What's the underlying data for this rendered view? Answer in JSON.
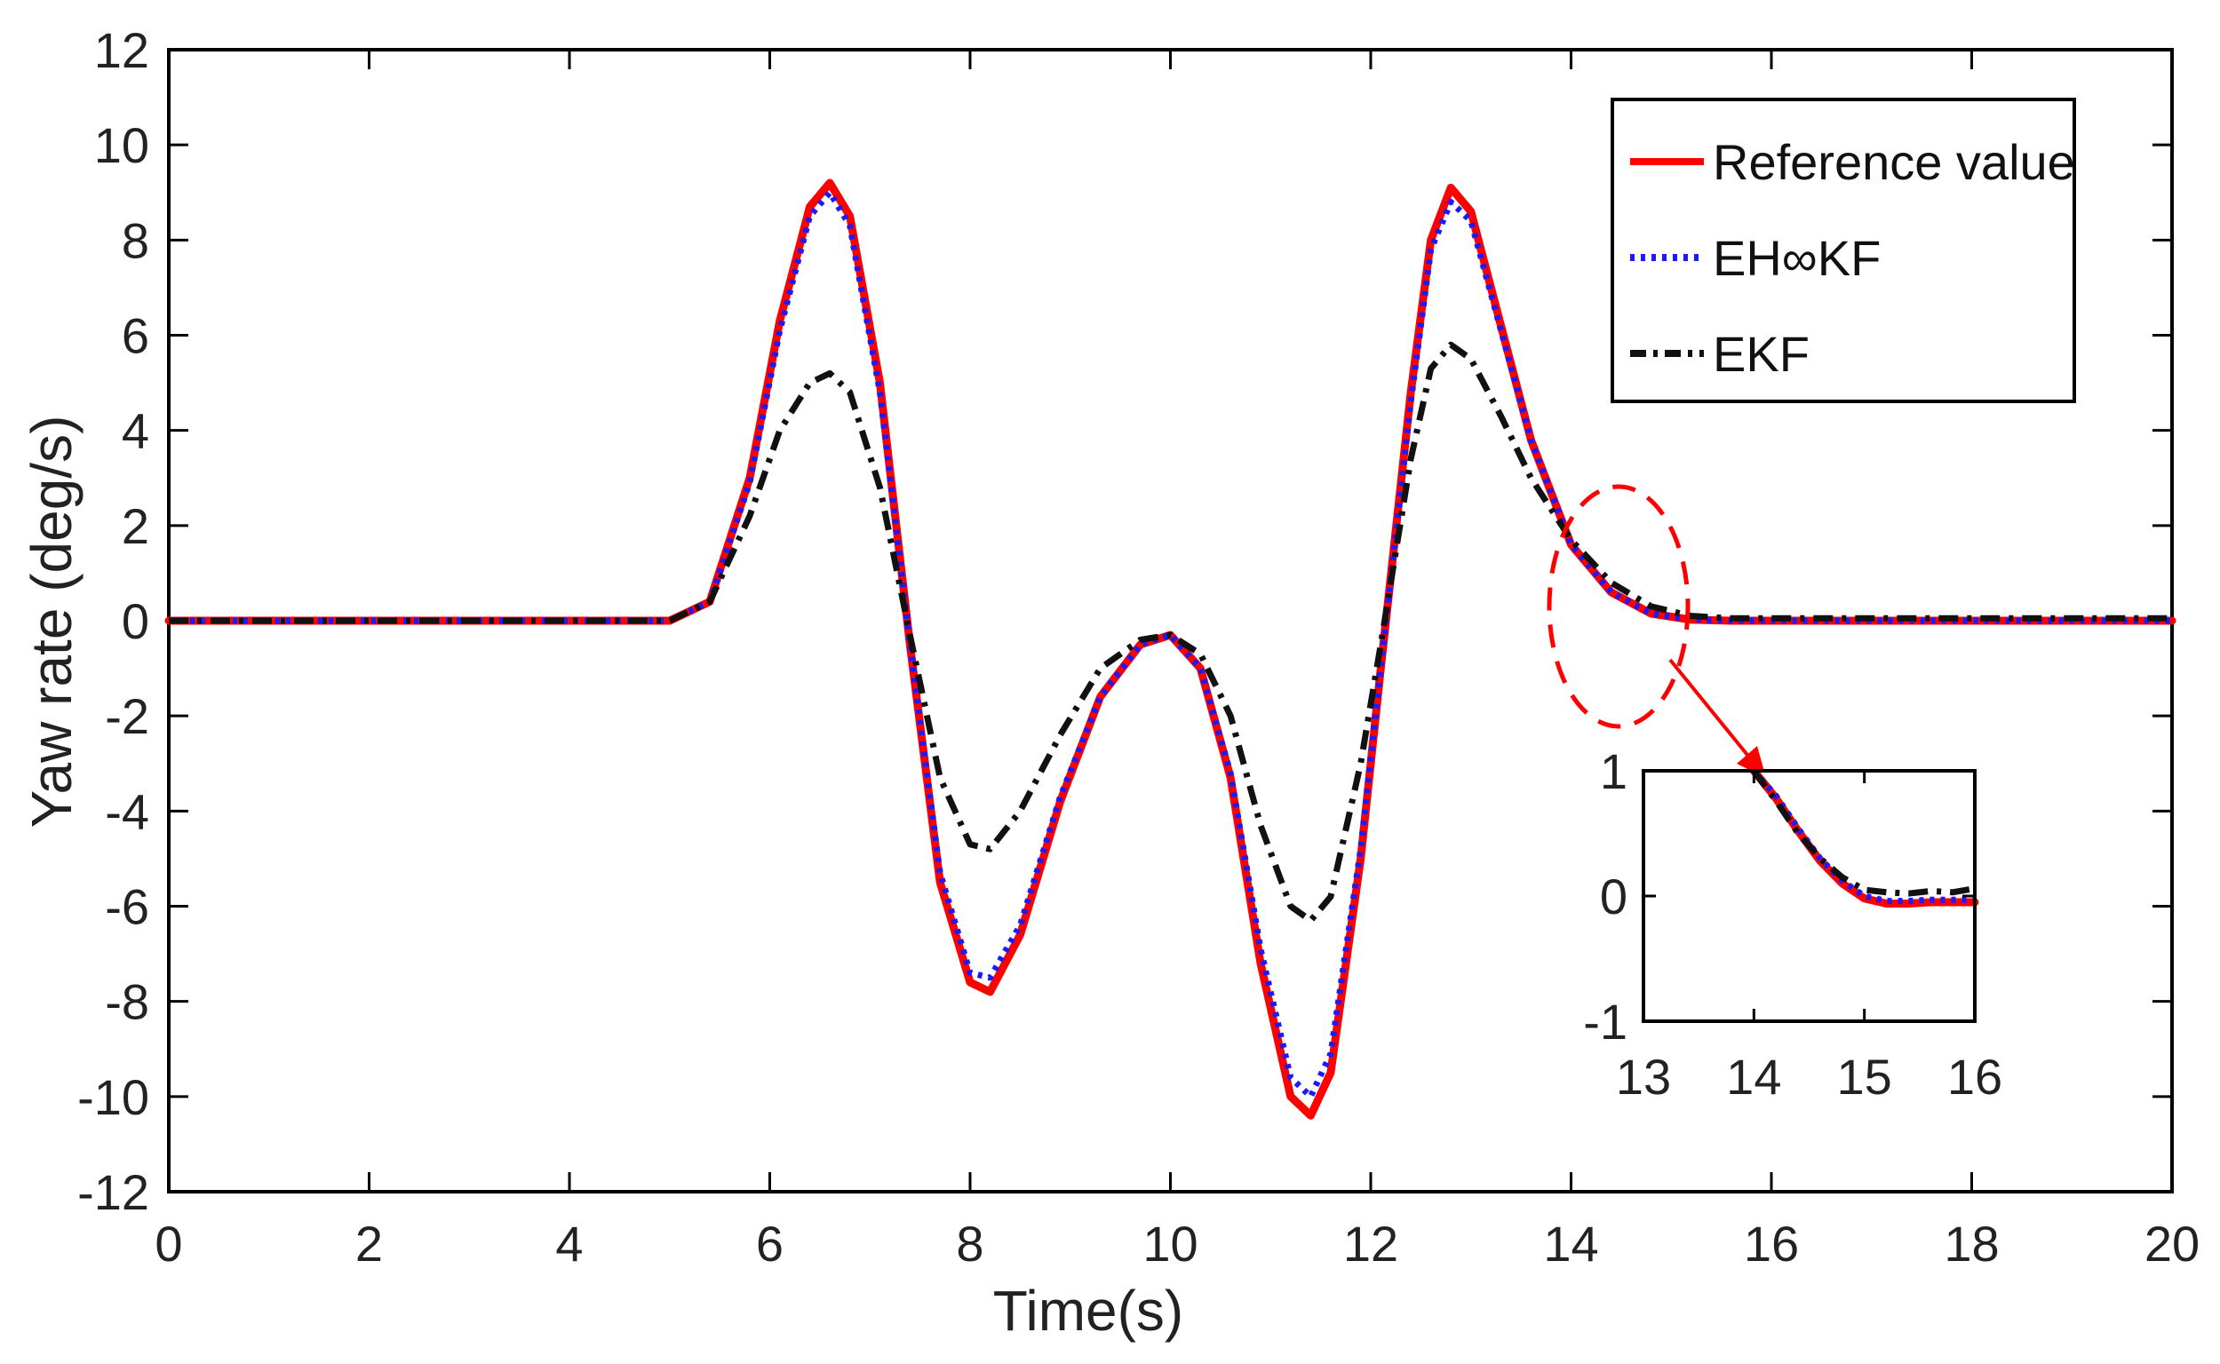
{
  "colors": {
    "reference": "#ff0000",
    "ehinf": "#1a1aff",
    "ekf": "#111111",
    "callout": "#ff0000",
    "axis": "#000000"
  },
  "chart_data": [
    {
      "type": "line",
      "title": "",
      "xlabel": "Time(s)",
      "ylabel": "Yaw rate (deg/s)",
      "xlim": [
        0,
        20
      ],
      "ylim": [
        -12,
        12
      ],
      "xticks": [
        0,
        2,
        4,
        6,
        8,
        10,
        12,
        14,
        16,
        18,
        20
      ],
      "yticks": [
        -12,
        -10,
        -8,
        -6,
        -4,
        -2,
        0,
        2,
        4,
        6,
        8,
        10,
        12
      ],
      "xtick_labels": [
        "0",
        "2",
        "4",
        "6",
        "8",
        "10",
        "12",
        "14",
        "16",
        "18",
        "20"
      ],
      "ytick_labels": [
        "-12",
        "-10",
        "-8",
        "-6",
        "-4",
        "-2",
        "0",
        "2",
        "4",
        "6",
        "8",
        "10",
        "12"
      ],
      "grid": false,
      "legend_position": "top-right",
      "series": [
        {
          "name": "Reference value",
          "color_key": "reference",
          "style": "solid",
          "x": [
            0,
            5,
            5.4,
            5.8,
            6.1,
            6.4,
            6.6,
            6.8,
            7.1,
            7.4,
            7.7,
            8.0,
            8.2,
            8.5,
            8.9,
            9.3,
            9.7,
            10.0,
            10.3,
            10.6,
            10.9,
            11.2,
            11.4,
            11.6,
            11.9,
            12.1,
            12.4,
            12.6,
            12.8,
            13.0,
            13.3,
            13.6,
            14.0,
            14.4,
            14.8,
            15.2,
            15.6,
            16,
            17,
            18,
            19,
            20
          ],
          "y": [
            0,
            0,
            0.4,
            3.0,
            6.3,
            8.7,
            9.2,
            8.5,
            5.0,
            -0.5,
            -5.5,
            -7.6,
            -7.8,
            -6.6,
            -3.8,
            -1.6,
            -0.5,
            -0.3,
            -1.0,
            -3.3,
            -7.2,
            -10.0,
            -10.4,
            -9.5,
            -5.0,
            -1.0,
            4.8,
            8.0,
            9.1,
            8.6,
            6.2,
            3.8,
            1.6,
            0.6,
            0.15,
            0.02,
            0,
            0,
            0,
            0,
            0,
            0
          ]
        },
        {
          "name": "EH∞KF",
          "color_key": "ehinf",
          "style": "dotted",
          "x": [
            0,
            5,
            5.4,
            5.8,
            6.1,
            6.4,
            6.6,
            6.8,
            7.1,
            7.4,
            7.7,
            8.0,
            8.2,
            8.5,
            8.9,
            9.3,
            9.7,
            10.0,
            10.3,
            10.6,
            10.9,
            11.2,
            11.4,
            11.6,
            11.9,
            12.1,
            12.4,
            12.6,
            12.8,
            13.0,
            13.3,
            13.6,
            14.0,
            14.4,
            14.8,
            15.2,
            15.6,
            16,
            17,
            18,
            19,
            20
          ],
          "y": [
            0,
            0,
            0.4,
            2.9,
            6.1,
            8.5,
            9.0,
            8.3,
            4.8,
            -0.5,
            -5.3,
            -7.4,
            -7.5,
            -6.4,
            -3.7,
            -1.6,
            -0.5,
            -0.3,
            -1.0,
            -3.2,
            -6.9,
            -9.6,
            -10.0,
            -9.1,
            -4.8,
            -1.0,
            4.6,
            7.8,
            8.8,
            8.4,
            6.1,
            3.8,
            1.6,
            0.6,
            0.15,
            0.03,
            0,
            0,
            0,
            0,
            0,
            0
          ]
        },
        {
          "name": "EKF",
          "color_key": "ekf",
          "style": "dashdot",
          "x": [
            0,
            5,
            5.4,
            5.8,
            6.1,
            6.4,
            6.6,
            6.8,
            7.1,
            7.4,
            7.7,
            8.0,
            8.2,
            8.5,
            8.9,
            9.3,
            9.7,
            10.0,
            10.3,
            10.6,
            10.9,
            11.2,
            11.4,
            11.6,
            11.9,
            12.1,
            12.4,
            12.6,
            12.8,
            13.0,
            13.3,
            13.6,
            14.0,
            14.4,
            14.8,
            15.2,
            15.6,
            16,
            17,
            18,
            19,
            20
          ],
          "y": [
            0,
            0,
            0.4,
            2.2,
            4.0,
            5.0,
            5.2,
            4.8,
            2.8,
            -0.3,
            -3.3,
            -4.7,
            -4.8,
            -4.0,
            -2.4,
            -1.0,
            -0.4,
            -0.3,
            -0.7,
            -2.0,
            -4.3,
            -6.0,
            -6.3,
            -5.8,
            -3.0,
            -0.5,
            3.4,
            5.3,
            5.8,
            5.5,
            4.3,
            3.0,
            1.7,
            0.8,
            0.3,
            0.1,
            0.05,
            0.05,
            0.05,
            0.05,
            0.05,
            0.05
          ]
        }
      ]
    },
    {
      "type": "line",
      "title": "",
      "xlabel": "",
      "ylabel": "",
      "xlim": [
        13,
        16
      ],
      "ylim": [
        -1,
        1
      ],
      "xticks": [
        13,
        14,
        15,
        16
      ],
      "yticks": [
        -1,
        0,
        1
      ],
      "xtick_labels": [
        "13",
        "14",
        "15",
        "16"
      ],
      "ytick_labels": [
        "-1",
        "0",
        "1"
      ],
      "grid": false,
      "legend_position": "none",
      "series": [
        {
          "name": "Reference value",
          "color_key": "reference",
          "style": "solid",
          "x": [
            14.0,
            14.2,
            14.4,
            14.6,
            14.8,
            15.0,
            15.2,
            15.4,
            15.6,
            15.8,
            16.0
          ],
          "y": [
            1.0,
            0.78,
            0.52,
            0.28,
            0.1,
            -0.02,
            -0.06,
            -0.06,
            -0.05,
            -0.05,
            -0.05
          ]
        },
        {
          "name": "EH∞KF",
          "color_key": "ehinf",
          "style": "dotted",
          "x": [
            14.0,
            14.2,
            14.4,
            14.6,
            14.8,
            15.0,
            15.2,
            15.4,
            15.6,
            15.8,
            16.0
          ],
          "y": [
            1.0,
            0.8,
            0.54,
            0.3,
            0.12,
            0.0,
            -0.04,
            -0.04,
            -0.03,
            -0.03,
            -0.03
          ]
        },
        {
          "name": "EKF",
          "color_key": "ekf",
          "style": "dashdot",
          "x": [
            14.0,
            14.2,
            14.4,
            14.6,
            14.8,
            15.0,
            15.2,
            15.4,
            15.6,
            15.8,
            16.0
          ],
          "y": [
            1.0,
            0.76,
            0.5,
            0.3,
            0.15,
            0.05,
            0.03,
            0.02,
            0.04,
            0.03,
            0.06
          ]
        }
      ]
    }
  ],
  "legend": {
    "items": [
      "Reference value",
      "EH∞KF",
      "EKF"
    ]
  }
}
